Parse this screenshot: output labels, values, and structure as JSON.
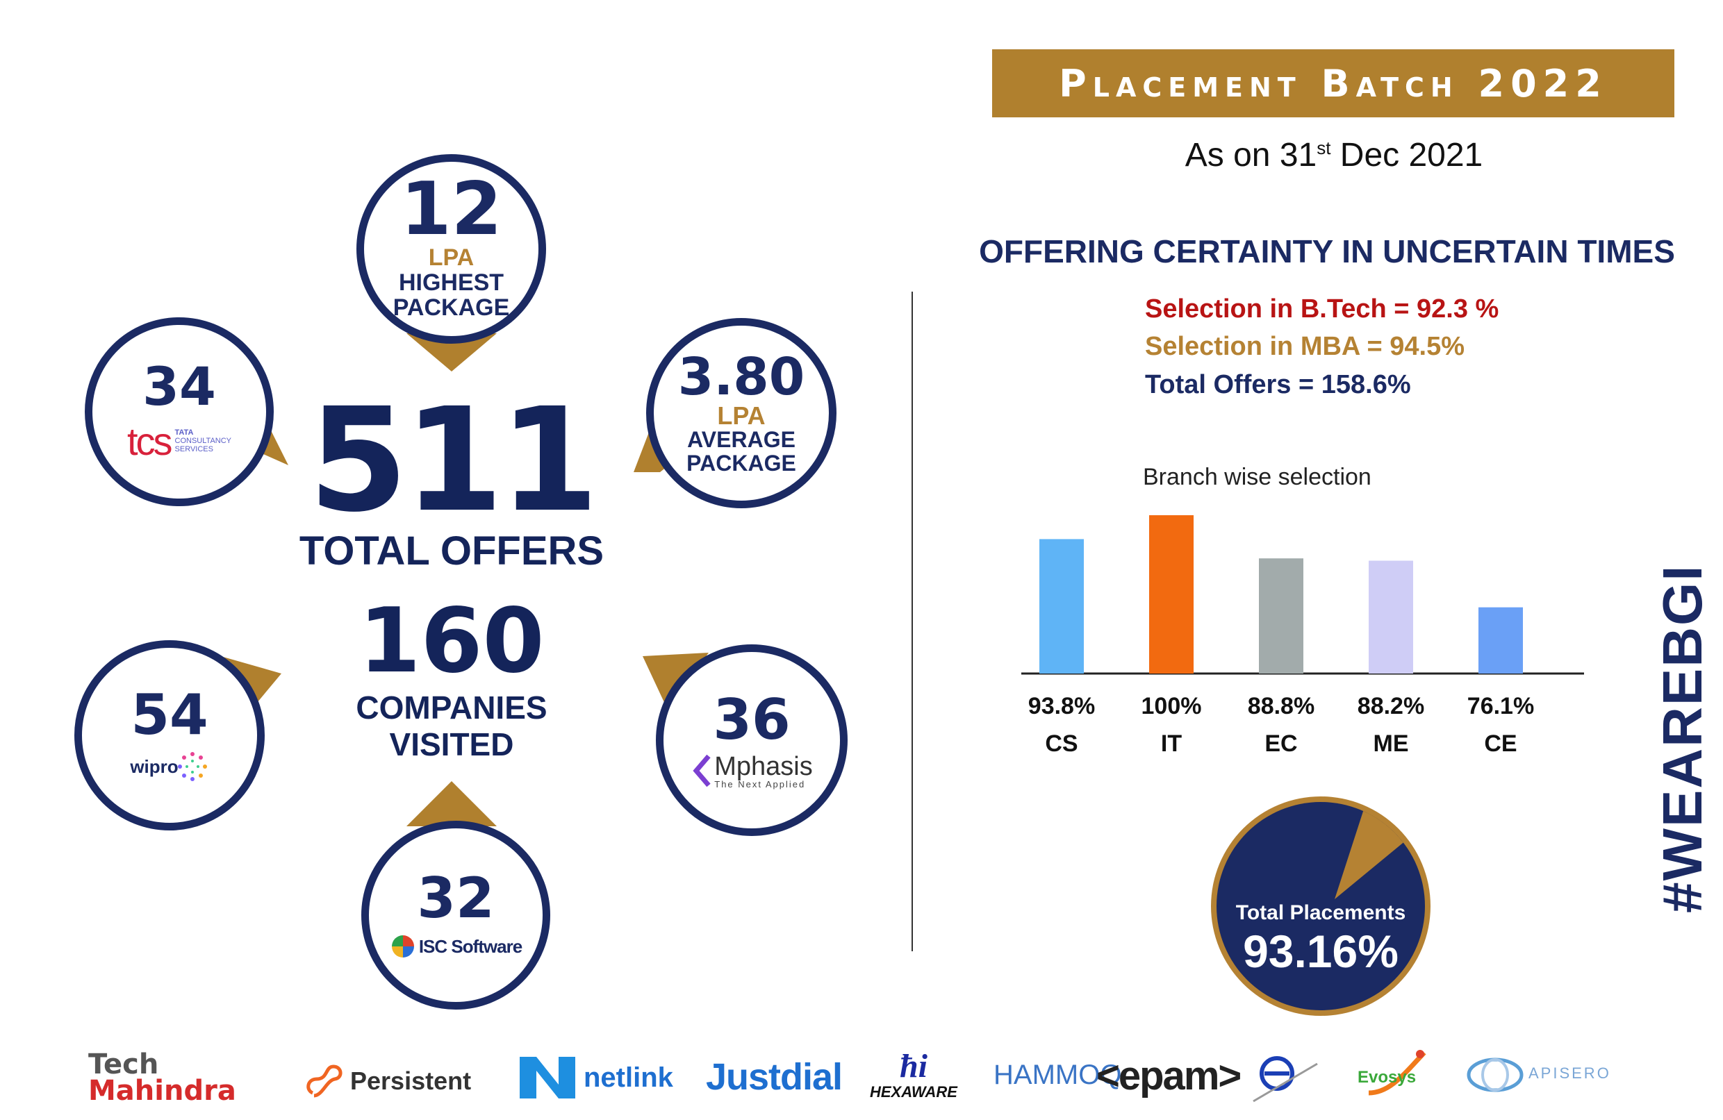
{
  "header": {
    "banner": "Placement Batch 2022",
    "as_on_prefix": "As on 31",
    "as_on_sup": "st",
    "as_on_suffix": " Dec 2021"
  },
  "tagline": "OFFERING CERTAINTY IN UNCERTAIN TIMES",
  "stats": {
    "btech": "Selection in B.Tech = 92.3 %",
    "mba": "Selection in MBA = 94.5%",
    "offers": "Total Offers = 158.6%"
  },
  "left": {
    "highest": {
      "value": "12",
      "unit": "LPA",
      "label1": "HIGHEST",
      "label2": "PACKAGE"
    },
    "average": {
      "value": "3.80",
      "unit": "LPA",
      "label1": "AVERAGE",
      "label2": "PACKAGE"
    },
    "total_offers": {
      "value": "511",
      "label": "TOTAL OFFERS"
    },
    "companies": {
      "value": "160",
      "label1": "COMPANIES",
      "label2": "VISITED"
    },
    "tcs": {
      "value": "34",
      "logo": "tcs",
      "logo_sub1": "TATA",
      "logo_sub2": "CONSULTANCY",
      "logo_sub3": "SERVICES"
    },
    "wipro": {
      "value": "54",
      "logo": "wipro"
    },
    "mphasis": {
      "value": "36",
      "logo": "Mphasis",
      "logo_sub": "The Next Applied"
    },
    "isc": {
      "value": "32",
      "logo": "ISC Software"
    }
  },
  "chart_data": {
    "type": "bar",
    "title": "Branch wise selection",
    "categories": [
      "CS",
      "IT",
      "EC",
      "ME",
      "CE"
    ],
    "values": [
      93.8,
      100,
      88.8,
      88.2,
      76.1
    ],
    "labels": [
      "93.8%",
      "100%",
      "88.8%",
      "88.2%",
      "76.1%"
    ],
    "colors": [
      "#5fb4f6",
      "#f26a10",
      "#a2abab",
      "#cfcdf6",
      "#6aa0f6"
    ],
    "ylim": [
      60,
      100
    ]
  },
  "pie": {
    "title": "Total Placements",
    "value": "93.16%",
    "fraction": 0.9316,
    "main_color": "#1b2a63",
    "slice_color": "#b58233"
  },
  "hashtag": "#WEAREBGI",
  "recruiters": {
    "tech1": "Tech",
    "tech2": "Mahindra",
    "persistent": "Persistent",
    "netlink": "netlink",
    "justdial": "Justdial",
    "hexaware": "HEXAWARE",
    "hammoq": "HAMMOQ",
    "epam": "<epam>",
    "evosys": "Evosys",
    "apisero": "APISERO"
  }
}
